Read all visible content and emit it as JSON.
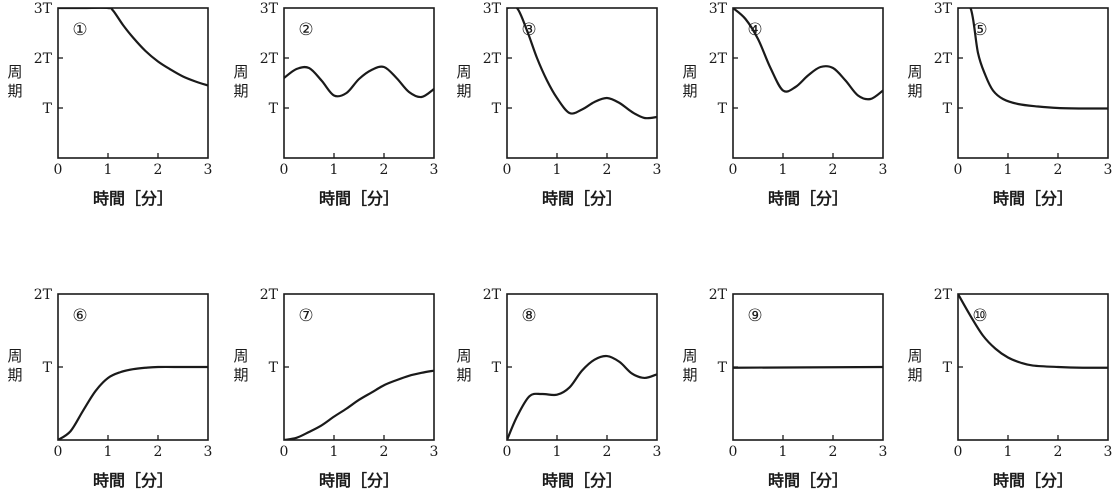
{
  "chart_data": [
    {
      "type": "line",
      "tag": "①",
      "xlabel": "時間［分］",
      "ylabel": "周期",
      "xticks": [
        "0",
        "1",
        "2",
        "3"
      ],
      "yticks": [
        "0",
        "T",
        "2T",
        "3T"
      ],
      "xlim": [
        0,
        3
      ],
      "ylim": [
        0,
        3
      ],
      "series": [
        {
          "x": [
            0,
            0.5,
            1.0,
            1.1,
            1.3,
            1.5,
            1.75,
            2.0,
            2.25,
            2.5,
            2.75,
            3.0
          ],
          "y": [
            3,
            3,
            3,
            2.95,
            2.66,
            2.41,
            2.14,
            1.93,
            1.77,
            1.63,
            1.53,
            1.45
          ]
        }
      ]
    },
    {
      "type": "line",
      "tag": "②",
      "xlabel": "時間［分］",
      "ylabel": "周期",
      "xticks": [
        "0",
        "1",
        "2",
        "3"
      ],
      "yticks": [
        "0",
        "T",
        "2T",
        "3T"
      ],
      "xlim": [
        0,
        3
      ],
      "ylim": [
        0,
        3
      ],
      "series": [
        {
          "x": [
            0,
            0.25,
            0.5,
            0.75,
            1.0,
            1.25,
            1.5,
            1.75,
            2.0,
            2.25,
            2.5,
            2.75,
            3.0
          ],
          "y": [
            1.6,
            1.78,
            1.8,
            1.55,
            1.25,
            1.3,
            1.58,
            1.76,
            1.82,
            1.6,
            1.32,
            1.22,
            1.38
          ]
        }
      ]
    },
    {
      "type": "line",
      "tag": "③",
      "xlabel": "時間［分］",
      "ylabel": "周期",
      "xticks": [
        "0",
        "1",
        "2",
        "3"
      ],
      "yticks": [
        "0",
        "T",
        "2T",
        "3T"
      ],
      "xlim": [
        0,
        3
      ],
      "ylim": [
        0,
        3
      ],
      "series": [
        {
          "x": [
            0,
            0.2,
            0.4,
            0.6,
            0.8,
            1.0,
            1.25,
            1.5,
            1.75,
            2.0,
            2.25,
            2.5,
            2.75,
            3.0
          ],
          "y": [
            3,
            3,
            2.55,
            2.0,
            1.55,
            1.2,
            0.9,
            0.97,
            1.12,
            1.2,
            1.1,
            0.92,
            0.8,
            0.82
          ]
        }
      ]
    },
    {
      "type": "line",
      "tag": "④",
      "xlabel": "時間［分］",
      "ylabel": "周期",
      "xticks": [
        "0",
        "1",
        "2",
        "3"
      ],
      "yticks": [
        "0",
        "T",
        "2T",
        "3T"
      ],
      "xlim": [
        0,
        3
      ],
      "ylim": [
        0,
        3
      ],
      "series": [
        {
          "x": [
            0,
            0.25,
            0.5,
            0.75,
            1.0,
            1.25,
            1.5,
            1.75,
            2.0,
            2.25,
            2.5,
            2.75,
            3.0
          ],
          "y": [
            3,
            2.78,
            2.38,
            1.8,
            1.35,
            1.42,
            1.65,
            1.82,
            1.8,
            1.55,
            1.25,
            1.18,
            1.35
          ]
        }
      ]
    },
    {
      "type": "line",
      "tag": "⑤",
      "xlabel": "時間［分］",
      "ylabel": "周期",
      "xticks": [
        "0",
        "1",
        "2",
        "3"
      ],
      "yticks": [
        "0",
        "T",
        "2T",
        "3T"
      ],
      "xlim": [
        0,
        3
      ],
      "ylim": [
        0,
        3
      ],
      "series": [
        {
          "x": [
            0,
            0.25,
            0.4,
            0.55,
            0.7,
            0.9,
            1.2,
            1.6,
            2.0,
            2.5,
            3.0
          ],
          "y": [
            3,
            3,
            2.1,
            1.65,
            1.35,
            1.18,
            1.08,
            1.03,
            1.0,
            0.99,
            0.99
          ]
        }
      ]
    },
    {
      "type": "line",
      "tag": "⑥",
      "xlabel": "時間［分］",
      "ylabel": "周期",
      "xticks": [
        "0",
        "1",
        "2",
        "3"
      ],
      "yticks": [
        "0",
        "T",
        "2T"
      ],
      "xlim": [
        0,
        3
      ],
      "ylim": [
        0,
        2
      ],
      "series": [
        {
          "x": [
            0,
            0.25,
            0.5,
            0.75,
            1.0,
            1.25,
            1.5,
            1.75,
            2.0,
            2.5,
            3.0
          ],
          "y": [
            0,
            0.12,
            0.4,
            0.67,
            0.85,
            0.93,
            0.97,
            0.99,
            1.0,
            1.0,
            1.0
          ]
        }
      ]
    },
    {
      "type": "line",
      "tag": "⑦",
      "xlabel": "時間［分］",
      "ylabel": "周期",
      "xticks": [
        "0",
        "1",
        "2",
        "3"
      ],
      "yticks": [
        "0",
        "T",
        "2T"
      ],
      "xlim": [
        0,
        3
      ],
      "ylim": [
        0,
        2
      ],
      "series": [
        {
          "x": [
            0,
            0.25,
            0.5,
            0.75,
            1.0,
            1.25,
            1.5,
            1.75,
            2.0,
            2.25,
            2.5,
            2.75,
            3.0
          ],
          "y": [
            0,
            0.03,
            0.11,
            0.2,
            0.32,
            0.43,
            0.55,
            0.65,
            0.75,
            0.82,
            0.88,
            0.92,
            0.95
          ]
        }
      ]
    },
    {
      "type": "line",
      "tag": "⑧",
      "xlabel": "時間［分］",
      "ylabel": "周期",
      "xticks": [
        "0",
        "1",
        "2",
        "3"
      ],
      "yticks": [
        "0",
        "T",
        "2T"
      ],
      "xlim": [
        0,
        3
      ],
      "ylim": [
        0,
        2
      ],
      "series": [
        {
          "x": [
            0,
            0.2,
            0.45,
            0.7,
            1.0,
            1.25,
            1.5,
            1.75,
            2.0,
            2.25,
            2.5,
            2.75,
            3.0
          ],
          "y": [
            0,
            0.32,
            0.6,
            0.63,
            0.62,
            0.72,
            0.95,
            1.1,
            1.15,
            1.07,
            0.91,
            0.85,
            0.9
          ]
        }
      ]
    },
    {
      "type": "line",
      "tag": "⑨",
      "xlabel": "時間［分］",
      "ylabel": "周期",
      "xticks": [
        "0",
        "1",
        "2",
        "3"
      ],
      "yticks": [
        "0",
        "T",
        "2T"
      ],
      "xlim": [
        0,
        3
      ],
      "ylim": [
        0,
        2
      ],
      "series": [
        {
          "x": [
            0,
            3
          ],
          "y": [
            0.99,
            1.0
          ]
        }
      ]
    },
    {
      "type": "line",
      "tag": "⑩",
      "xlabel": "時間［分］",
      "ylabel": "周期",
      "xticks": [
        "0",
        "1",
        "2",
        "3"
      ],
      "yticks": [
        "0",
        "T",
        "2T"
      ],
      "xlim": [
        0,
        3
      ],
      "ylim": [
        0,
        2
      ],
      "series": [
        {
          "x": [
            0,
            0.25,
            0.5,
            0.75,
            1.0,
            1.25,
            1.5,
            2.0,
            2.5,
            3.0
          ],
          "y": [
            2.0,
            1.7,
            1.43,
            1.25,
            1.13,
            1.06,
            1.02,
            1.0,
            0.99,
            0.99
          ]
        }
      ]
    }
  ]
}
